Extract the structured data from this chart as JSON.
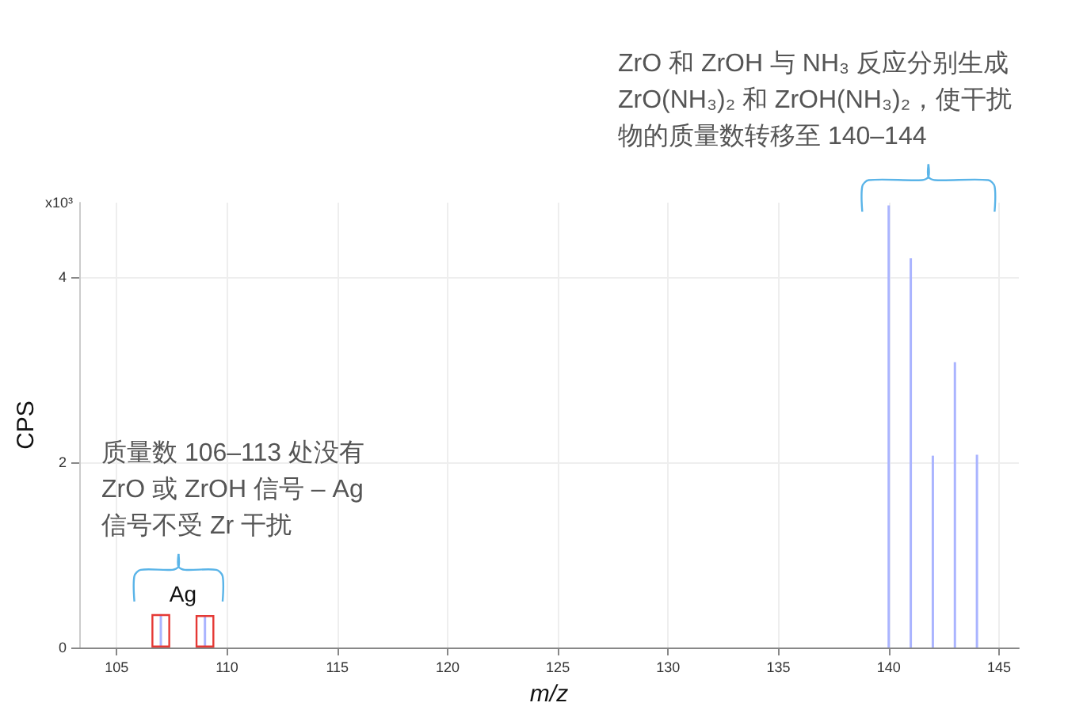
{
  "chart_data": {
    "type": "bar",
    "xlabel": "m/z",
    "ylabel": "CPS",
    "series": [
      {
        "color": "#aab4ff",
        "x": [
          107,
          109,
          140,
          141,
          142,
          143,
          144
        ],
        "values": [
          0.36,
          0.35,
          4.77,
          4.2,
          2.07,
          3.08,
          2.08
        ]
      },
      {
        "name": "Ag",
        "color": "#e53935",
        "x": [
          107,
          109
        ],
        "values": [
          0.36,
          0.35
        ]
      }
    ],
    "xlim": [
      103.3,
      145.9
    ],
    "xticks": [
      105,
      110,
      115,
      120,
      125,
      130,
      135,
      140,
      145
    ],
    "ylim": [
      0,
      4.8
    ],
    "yticks": [
      0,
      2,
      4
    ],
    "grid": true,
    "legend": false,
    "annotations": [
      "质量数 106–113 处没有\nZrO 或 ZrOH 信号 – Ag\n信号不受 Zr 干扰",
      "ZrO 和 ZrOH 与 NH₃ 反应分别生成\nZrO(NH₃)₂ 和 ZrOH(NH₃)₂，使干扰物的质量数转移至 140–144",
      "x10³"
    ]
  }
}
